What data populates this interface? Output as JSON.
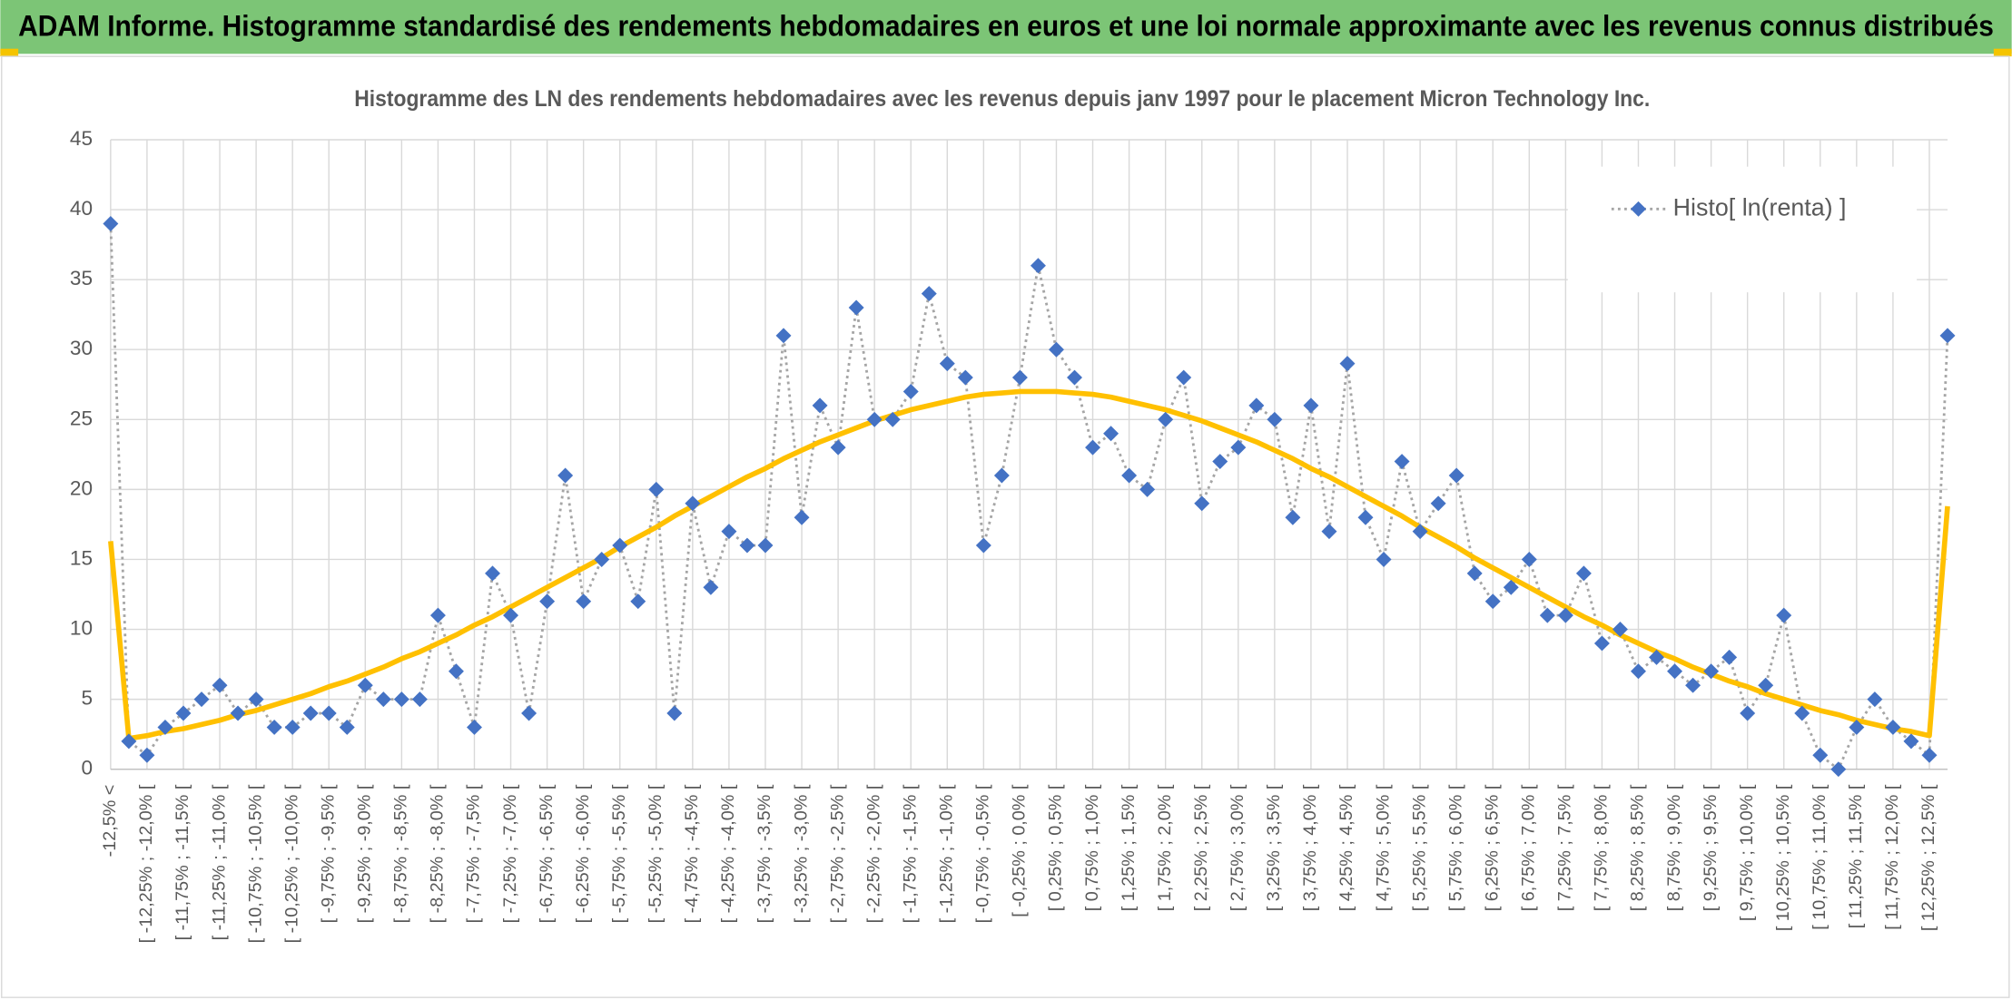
{
  "header": {
    "title": "ADAM Informe. Histogramme standardisé des rendements hebdomadaires en euros et une loi normale approximante avec les revenus connus distribués"
  },
  "chart_data": {
    "type": "line",
    "title": "Histogramme des LN des rendements hebdomadaires avec les revenus depuis janv 1997 pour le placement Micron Technology Inc.",
    "categories": [
      "-12,5% <",
      null,
      "[ -12,25% ; -12,0% [",
      null,
      "[ -11,75% ; -11,5% [",
      null,
      "[ -11,25% ; -11,0% [",
      null,
      "[ -10,75% ; -10,5% [",
      null,
      "[ -10,25% ; -10,0% [",
      null,
      "[ -9,75% ; -9,5% [",
      null,
      "[ -9,25% ; -9,0% [",
      null,
      "[ -8,75% ; -8,5% [",
      null,
      "[ -8,25% ; -8,0% [",
      null,
      "[ -7,75% ; -7,5% [",
      null,
      "[ -7,25% ; -7,0% [",
      null,
      "[ -6,75% ; -6,5% [",
      null,
      "[ -6,25% ; -6,0% [",
      null,
      "[ -5,75% ; -5,5% [",
      null,
      "[ -5,25% ; -5,0% [",
      null,
      "[ -4,75% ; -4,5% [",
      null,
      "[ -4,25% ; -4,0% [",
      null,
      "[ -3,75% ; -3,5% [",
      null,
      "[ -3,25% ; -3,0% [",
      null,
      "[ -2,75% ; -2,5% [",
      null,
      "[ -2,25% ; -2,0% [",
      null,
      "[ -1,75% ; -1,5% [",
      null,
      "[ -1,25% ; -1,0% [",
      null,
      "[ -0,75% ; -0,5% [",
      null,
      "[ -0,25% ; 0,0% [",
      null,
      "[ 0,25% ; 0,5% [",
      null,
      "[ 0,75% ; 1,0% [",
      null,
      "[ 1,25% ; 1,5% [",
      null,
      "[ 1,75% ; 2,0% [",
      null,
      "[ 2,25% ; 2,5% [",
      null,
      "[ 2,75% ; 3,0% [",
      null,
      "[ 3,25% ; 3,5% [",
      null,
      "[ 3,75% ; 4,0% [",
      null,
      "[ 4,25% ; 4,5% [",
      null,
      "[ 4,75% ; 5,0% [",
      null,
      "[ 5,25% ; 5,5% [",
      null,
      "[ 5,75% ; 6,0% [",
      null,
      "[ 6,25% ; 6,5% [",
      null,
      "[ 6,75% ; 7,0% [",
      null,
      "[ 7,25% ; 7,5% [",
      null,
      "[ 7,75% ; 8,0% [",
      null,
      "[ 8,25% ; 8,5% [",
      null,
      "[ 8,75% ; 9,0% [",
      null,
      "[ 9,25% ; 9,5% [",
      null,
      "[ 9,75% ; 10,0% [",
      null,
      "[ 10,25% ; 10,5% [",
      null,
      "[ 10,75% ; 11,0% [",
      null,
      "[ 11,25% ; 11,5% [",
      null,
      "[ 11,75% ; 12,0% [",
      null,
      "[ 12,25% ; 12,5% [",
      null
    ],
    "series": [
      {
        "name": "Histo[ ln(renta) ]",
        "color": "#4472c4",
        "line_color": "#a5a5a5",
        "line_style": "dotted",
        "marker": "diamond",
        "values": [
          39,
          2,
          1,
          3,
          4,
          5,
          6,
          4,
          5,
          3,
          3,
          4,
          4,
          3,
          6,
          5,
          5,
          5,
          11,
          7,
          3,
          14,
          11,
          4,
          12,
          21,
          12,
          15,
          16,
          12,
          20,
          4,
          19,
          13,
          17,
          16,
          16,
          31,
          18,
          26,
          23,
          33,
          25,
          25,
          27,
          34,
          29,
          28,
          16,
          21,
          28,
          36,
          30,
          28,
          23,
          24,
          21,
          20,
          25,
          28,
          19,
          22,
          23,
          26,
          25,
          18,
          26,
          17,
          29,
          18,
          15,
          22,
          17,
          19,
          21,
          14,
          12,
          13,
          15,
          11,
          11,
          14,
          9,
          10,
          7,
          8,
          7,
          6,
          7,
          8,
          4,
          6,
          11,
          4,
          1,
          0,
          3,
          5,
          3,
          2,
          1,
          31
        ]
      },
      {
        "color": "#ffc000",
        "line_style": "solid",
        "marker": "none",
        "values": [
          16.3,
          2.2,
          2.4,
          2.7,
          2.9,
          3.2,
          3.5,
          3.9,
          4.2,
          4.6,
          5.0,
          5.4,
          5.9,
          6.3,
          6.8,
          7.3,
          7.9,
          8.4,
          9.0,
          9.6,
          10.3,
          10.9,
          11.6,
          12.3,
          13.0,
          13.7,
          14.4,
          15.1,
          15.9,
          16.6,
          17.3,
          18.1,
          18.8,
          19.5,
          20.2,
          20.9,
          21.5,
          22.2,
          22.8,
          23.4,
          23.9,
          24.4,
          24.9,
          25.3,
          25.7,
          26.0,
          26.3,
          26.6,
          26.8,
          26.9,
          27.0,
          27.0,
          27.0,
          26.9,
          26.8,
          26.6,
          26.3,
          26.0,
          25.7,
          25.3,
          24.9,
          24.4,
          23.9,
          23.4,
          22.8,
          22.2,
          21.5,
          20.9,
          20.2,
          19.5,
          18.8,
          18.1,
          17.3,
          16.6,
          15.9,
          15.1,
          14.4,
          13.7,
          13.0,
          12.3,
          11.6,
          10.9,
          10.3,
          9.6,
          9.0,
          8.4,
          7.9,
          7.3,
          6.8,
          6.3,
          5.9,
          5.4,
          5.0,
          4.6,
          4.2,
          3.9,
          3.5,
          3.2,
          2.9,
          2.7,
          2.4,
          18.8
        ]
      }
    ],
    "ylim": [
      0,
      45
    ],
    "yticks": [
      0,
      5,
      10,
      15,
      20,
      25,
      30,
      35,
      40,
      45
    ],
    "grid": true,
    "legend": "top-right"
  }
}
